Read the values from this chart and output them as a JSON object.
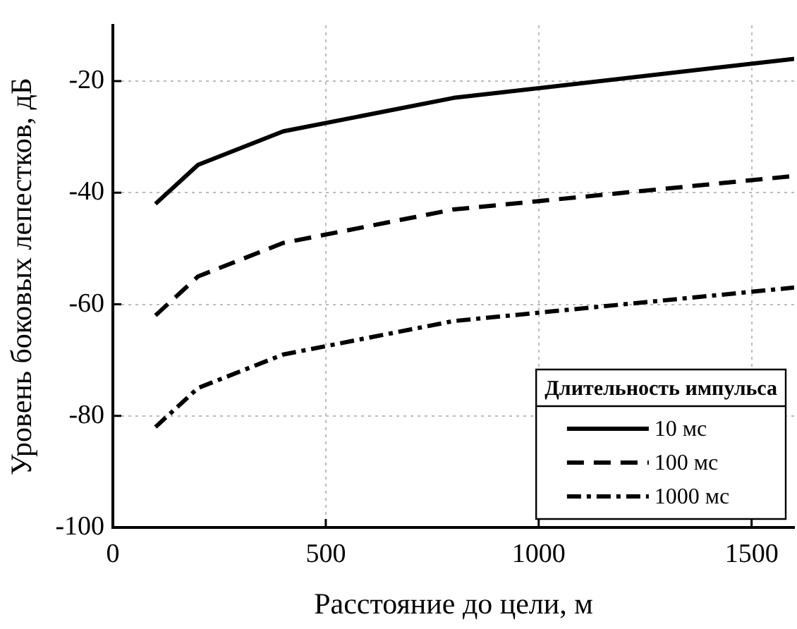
{
  "chart_data": {
    "type": "line",
    "xlabel": "Расстояние до цели, м",
    "ylabel": "Уровень боковых лепестков, дБ",
    "legend_title": "Длительность импульса",
    "x": [
      100,
      200,
      400,
      800,
      1600
    ],
    "series": [
      {
        "name": "10 мс",
        "color": "#000000",
        "line_style": "solid",
        "values": [
          -42,
          -35,
          -29,
          -23,
          -16
        ]
      },
      {
        "name": "100 мс",
        "color": "#000000",
        "line_style": "dashed",
        "values": [
          -62,
          -55,
          -49,
          -43,
          -37
        ]
      },
      {
        "name": "1000 мс",
        "color": "#000000",
        "line_style": "dashdot",
        "values": [
          -82,
          -75,
          -69,
          -63,
          -57
        ]
      }
    ],
    "xlim": [
      0,
      1600
    ],
    "xticks": [
      0,
      500,
      1000,
      1500
    ],
    "ylim": [
      -100,
      -10
    ],
    "yticks": [
      -100,
      -80,
      -60,
      -40,
      -20
    ],
    "grid": true,
    "legend": "bottom right",
    "marker": "none"
  }
}
